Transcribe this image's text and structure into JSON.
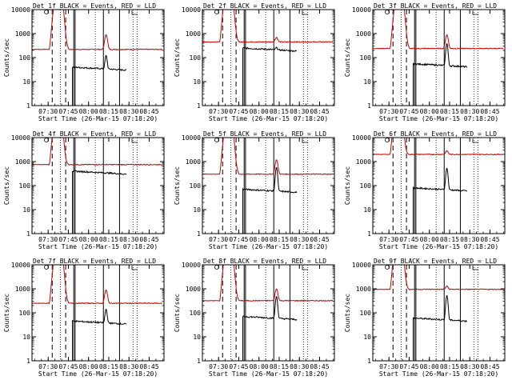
{
  "chart_data": [
    {
      "type": "line",
      "title": "Det_1f BLACK = Events, RED = LLD",
      "xlabel": "Start Time (26-Mar-15 07:18:20)",
      "ylabel": "Counts/sec",
      "yscale": "log",
      "ylim": [
        1,
        10000
      ],
      "x_ticks": [
        "07:30",
        "07:45",
        "08:00",
        "08:15",
        "08:30",
        "08:45"
      ],
      "y_ticks": [
        "1",
        "10",
        "100",
        "1000",
        "10000"
      ],
      "events_start": "07:48",
      "event_base": 40,
      "event_peak": 130,
      "lld_level": 220,
      "lld_peak": 900
    },
    {
      "type": "line",
      "title": "Det_2f BLACK = Events, RED = LLD",
      "xlabel": "Start Time (26-Mar-15 07:18:20)",
      "ylabel": "Counts/sec",
      "yscale": "log",
      "ylim": [
        1,
        10000
      ],
      "x_ticks": [
        "07:30",
        "07:45",
        "08:00",
        "08:15",
        "08:30",
        "08:45"
      ],
      "y_ticks": [
        "1",
        "10",
        "100",
        "1000",
        "10000"
      ],
      "events_start": "07:48",
      "event_base": 250,
      "event_peak": 300,
      "lld_level": 450,
      "lld_peak": 700
    },
    {
      "type": "line",
      "title": "Det_3f BLACK = Events, RED = LLD",
      "xlabel": "Start Time (26-Mar-15 07:18:20)",
      "ylabel": "Counts/sec",
      "yscale": "log",
      "ylim": [
        1,
        10000
      ],
      "x_ticks": [
        "07:30",
        "07:45",
        "08:00",
        "08:15",
        "08:30",
        "08:45"
      ],
      "y_ticks": [
        "1",
        "10",
        "100",
        "1000",
        "10000"
      ],
      "events_start": "07:48",
      "event_base": 55,
      "event_peak": 400,
      "lld_level": 240,
      "lld_peak": 900
    },
    {
      "type": "line",
      "title": "Det_4f BLACK = Events, RED = LLD",
      "xlabel": "Start Time (26-Mar-15 07:18:20)",
      "ylabel": "Counts/sec",
      "yscale": "log",
      "ylim": [
        1,
        10000
      ],
      "x_ticks": [
        "07:30",
        "07:45",
        "08:00",
        "08:15",
        "08:30",
        "08:45"
      ],
      "y_ticks": [
        "1",
        "10",
        "100",
        "1000",
        "10000"
      ],
      "events_start": "07:48",
      "event_base": 400,
      "event_peak": 400,
      "lld_level": 750,
      "lld_peak": 750
    },
    {
      "type": "line",
      "title": "Det_5f BLACK = Events, RED = LLD",
      "xlabel": "Start Time (26-Mar-15 07:18:20)",
      "ylabel": "Counts/sec",
      "yscale": "log",
      "ylim": [
        1,
        10000
      ],
      "x_ticks": [
        "07:30",
        "07:45",
        "08:00",
        "08:15",
        "08:30",
        "08:45"
      ],
      "y_ticks": [
        "1",
        "10",
        "100",
        "1000",
        "10000"
      ],
      "events_start": "07:48",
      "event_base": 70,
      "event_peak": 600,
      "lld_level": 300,
      "lld_peak": 1200
    },
    {
      "type": "line",
      "title": "Det_6f BLACK = Events, RED = LLD",
      "xlabel": "Start Time (26-Mar-15 07:18:20)",
      "ylabel": "Counts/sec",
      "yscale": "log",
      "ylim": [
        1,
        10000
      ],
      "x_ticks": [
        "07:30",
        "07:45",
        "08:00",
        "08:15",
        "08:30",
        "08:45"
      ],
      "y_ticks": [
        "1",
        "10",
        "100",
        "1000",
        "10000"
      ],
      "events_start": "07:48",
      "event_base": 80,
      "event_peak": 550,
      "lld_level": 2000,
      "lld_peak": 2800
    },
    {
      "type": "line",
      "title": "Det_7f BLACK = Events, RED = LLD",
      "xlabel": "Start Time (26-Mar-15 07:18:20)",
      "ylabel": "Counts/sec",
      "yscale": "log",
      "ylim": [
        1,
        10000
      ],
      "x_ticks": [
        "07:30",
        "07:45",
        "08:00",
        "08:15",
        "08:30",
        "08:45"
      ],
      "y_ticks": [
        "1",
        "10",
        "100",
        "1000",
        "10000"
      ],
      "events_start": "07:48",
      "event_base": 45,
      "event_peak": 150,
      "lld_level": 250,
      "lld_peak": 900
    },
    {
      "type": "line",
      "title": "Det_8f BLACK = Events, RED = LLD",
      "xlabel": "Start Time (26-Mar-15 07:18:20)",
      "ylabel": "Counts/sec",
      "yscale": "log",
      "ylim": [
        1,
        10000
      ],
      "x_ticks": [
        "07:30",
        "07:45",
        "08:00",
        "08:15",
        "08:30",
        "08:45"
      ],
      "y_ticks": [
        "1",
        "10",
        "100",
        "1000",
        "10000"
      ],
      "events_start": "07:48",
      "event_base": 70,
      "event_peak": 500,
      "lld_level": 320,
      "lld_peak": 1000
    },
    {
      "type": "line",
      "title": "Det_9f BLACK = Events, RED = LLD",
      "xlabel": "Start Time (26-Mar-15 07:18:20)",
      "ylabel": "Counts/sec",
      "yscale": "log",
      "ylim": [
        1,
        10000
      ],
      "x_ticks": [
        "07:30",
        "07:45",
        "08:00",
        "08:15",
        "08:30",
        "08:45"
      ],
      "y_ticks": [
        "1",
        "10",
        "100",
        "1000",
        "10000"
      ],
      "events_start": "07:48",
      "event_base": 60,
      "event_peak": 550,
      "lld_level": 950,
      "lld_peak": 1300
    }
  ],
  "colors": {
    "events": "#000000",
    "lld": "#cc0000"
  }
}
